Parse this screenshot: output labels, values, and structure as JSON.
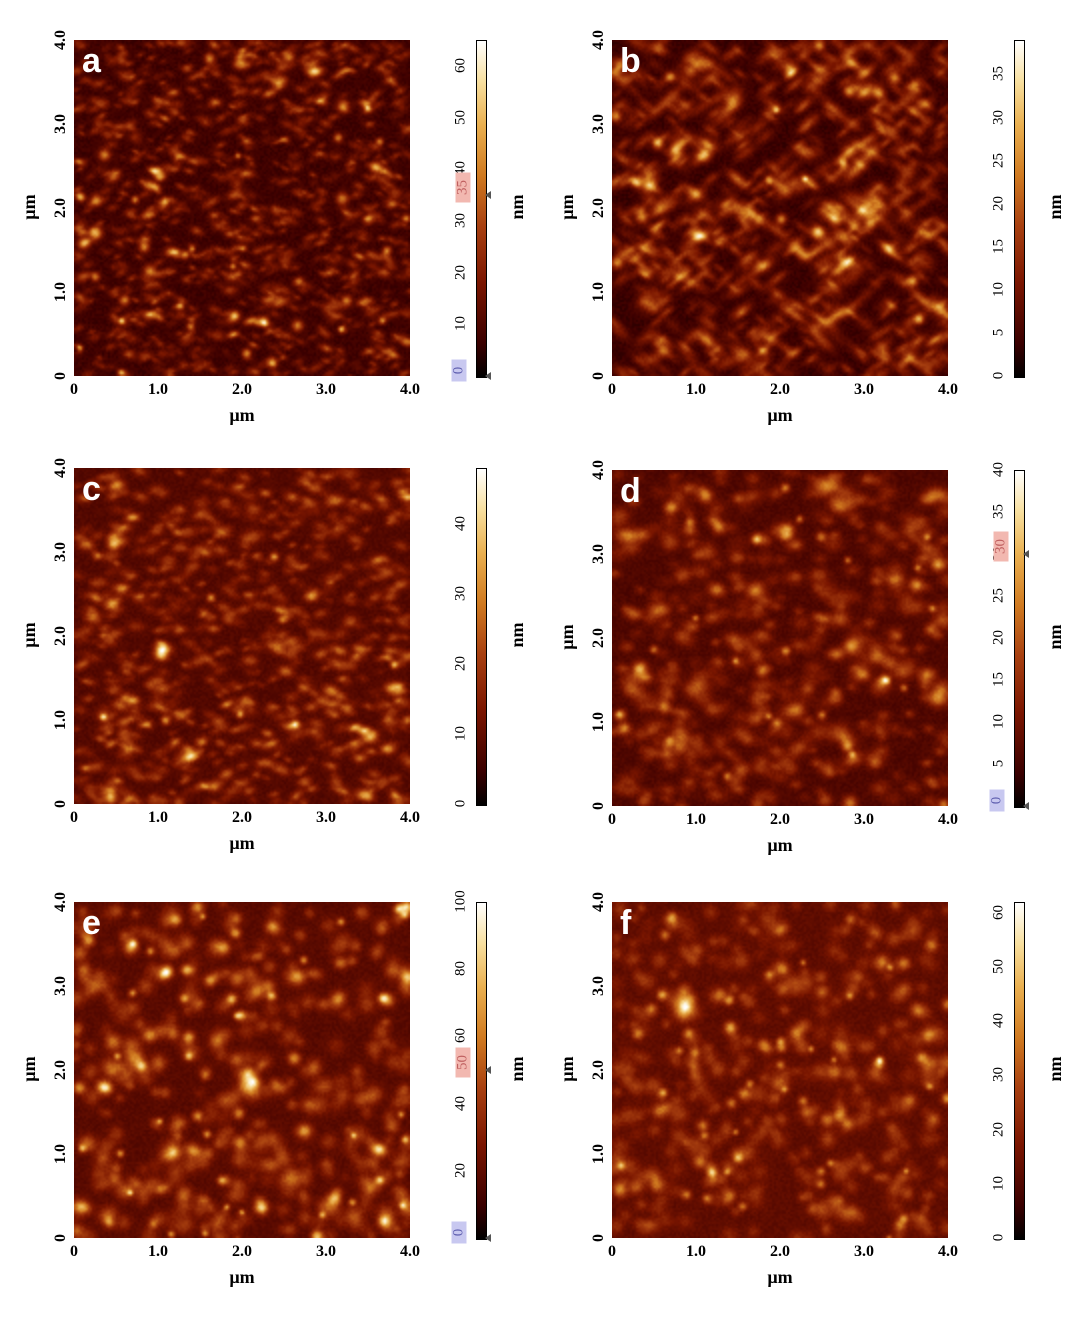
{
  "panels": [
    {
      "id": "a",
      "letter": "a",
      "x_ticks": [
        "0",
        "1.0",
        "2.0",
        "3.0",
        "4.0"
      ],
      "y_ticks": [
        "0",
        "1.0",
        "2.0",
        "3.0",
        "4.0"
      ],
      "x_label": "µm",
      "y_label": "µm",
      "colorbar": {
        "ticks": [
          "0",
          "10",
          "20",
          "30",
          "40",
          "50",
          "60"
        ],
        "max": 65,
        "unit": "nm",
        "markers": [
          {
            "label": "35",
            "value": 35,
            "style": "top"
          },
          {
            "label": "0",
            "value": 0,
            "style": "zero"
          }
        ]
      },
      "texture": {
        "grain": 1.6,
        "bright_spots": 40,
        "brightness": 0.42,
        "anisotropy": 0.5
      }
    },
    {
      "id": "b",
      "letter": "b",
      "x_ticks": [
        "0",
        "1.0",
        "2.0",
        "3.0",
        "4.0"
      ],
      "y_ticks": [
        "0",
        "1.0",
        "2.0",
        "3.0",
        "4.0"
      ],
      "x_label": "µm",
      "y_label": "µm",
      "colorbar": {
        "ticks": [
          "0",
          "5",
          "10",
          "15",
          "20",
          "25",
          "30",
          "35"
        ],
        "max": 39,
        "unit": "nm",
        "markers": []
      },
      "texture": {
        "grain": 2.2,
        "bright_spots": 25,
        "brightness": 0.4,
        "anisotropy": 0.8
      }
    },
    {
      "id": "c",
      "letter": "c",
      "x_ticks": [
        "0",
        "1.0",
        "2.0",
        "3.0",
        "4.0"
      ],
      "y_ticks": [
        "0",
        "1.0",
        "2.0",
        "3.0",
        "4.0"
      ],
      "x_label": "µm",
      "y_label": "µm",
      "colorbar": {
        "ticks": [
          "0",
          "10",
          "20",
          "30",
          "40"
        ],
        "max": 48,
        "unit": "nm",
        "markers": []
      },
      "texture": {
        "grain": 2.0,
        "bright_spots": 10,
        "brightness": 0.52,
        "anisotropy": 0.4
      }
    },
    {
      "id": "d",
      "letter": "d",
      "x_ticks": [
        "0",
        "1.0",
        "2.0",
        "3.0",
        "4.0"
      ],
      "y_ticks": [
        "0",
        "1.0",
        "2.0",
        "3.0",
        "4.0"
      ],
      "x_label": "µm",
      "y_label": "µm",
      "colorbar": {
        "ticks": [
          "0",
          "5",
          "10",
          "15",
          "20",
          "25",
          "30",
          "35",
          "40"
        ],
        "max": 40,
        "unit": "nm",
        "markers": [
          {
            "label": "30",
            "value": 30,
            "style": "top"
          },
          {
            "label": "0",
            "value": 0,
            "style": "zero"
          }
        ]
      },
      "texture": {
        "grain": 3.0,
        "bright_spots": 35,
        "brightness": 0.5,
        "anisotropy": 0.2
      }
    },
    {
      "id": "e",
      "letter": "e",
      "x_ticks": [
        "0",
        "1.0",
        "2.0",
        "3.0",
        "4.0"
      ],
      "y_ticks": [
        "0",
        "1.0",
        "2.0",
        "3.0",
        "4.0"
      ],
      "x_label": "µm",
      "y_label": "µm",
      "colorbar": {
        "ticks": [
          "0",
          "20",
          "40",
          "60",
          "80",
          "100"
        ],
        "max": 100,
        "unit": "nm",
        "markers": [
          {
            "label": "50",
            "value": 50,
            "style": "top"
          },
          {
            "label": "0",
            "value": 0,
            "style": "zero"
          }
        ]
      },
      "texture": {
        "grain": 3.4,
        "bright_spots": 60,
        "brightness": 0.55,
        "anisotropy": 0.0
      }
    },
    {
      "id": "f",
      "letter": "f",
      "x_ticks": [
        "0",
        "1.0",
        "2.0",
        "3.0",
        "4.0"
      ],
      "y_ticks": [
        "0",
        "1.0",
        "2.0",
        "3.0",
        "4.0"
      ],
      "x_label": "µm",
      "y_label": "µm",
      "colorbar": {
        "ticks": [
          "0",
          "10",
          "20",
          "30",
          "40",
          "50",
          "60"
        ],
        "max": 62,
        "unit": "nm",
        "markers": []
      },
      "texture": {
        "grain": 3.4,
        "bright_spots": 55,
        "brightness": 0.58,
        "anisotropy": 0.0
      }
    }
  ]
}
